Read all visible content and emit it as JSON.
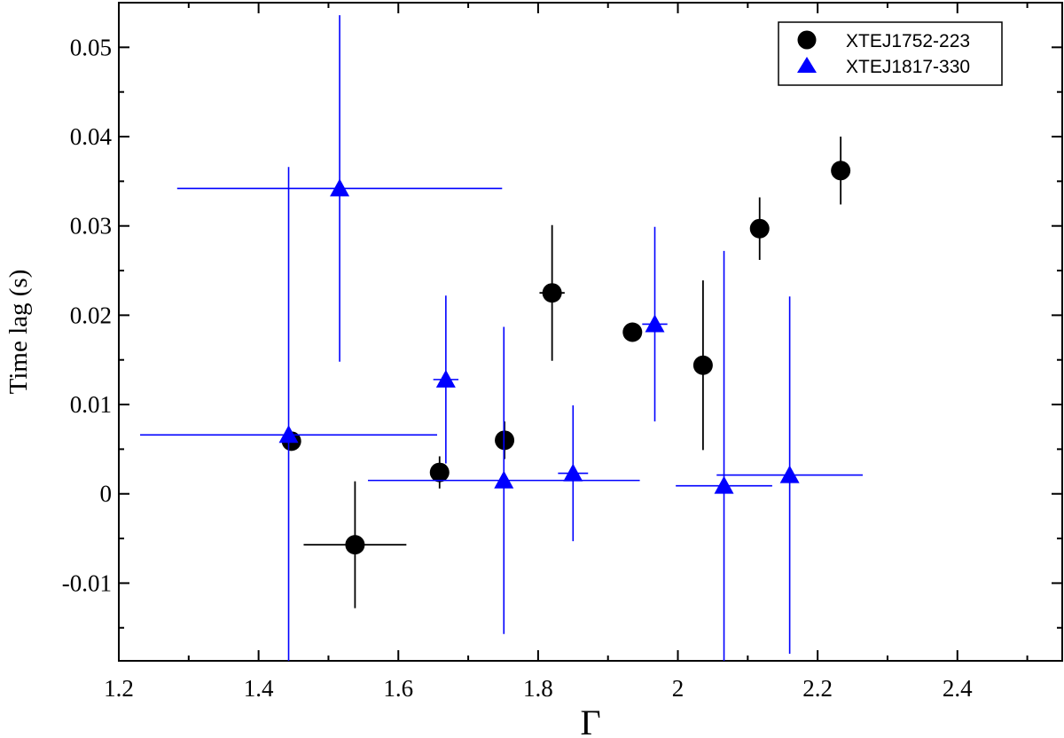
{
  "chart_data": {
    "type": "scatter",
    "xlabel": "Γ",
    "ylabel": "Time lag (s)",
    "xlim": [
      1.2,
      2.55
    ],
    "ylim": [
      -0.0187,
      0.055
    ],
    "xticks": [
      1.2,
      1.4,
      1.6,
      1.8,
      2.0,
      2.2,
      2.4
    ],
    "xtick_labels": [
      "1.2",
      "1.4",
      "1.6",
      "1.8",
      "2",
      "2.2",
      "2.4"
    ],
    "yticks": [
      -0.01,
      0,
      0.01,
      0.02,
      0.03,
      0.04,
      0.05
    ],
    "ytick_labels": [
      "-0.01",
      "0",
      "0.01",
      "0.02",
      "0.03",
      "0.04",
      "0.05"
    ],
    "legend_position": "top-right",
    "grid": false,
    "series": [
      {
        "name": "XTEJ1752-223",
        "marker": "circle",
        "color": "#000000",
        "points": [
          {
            "x": 1.447,
            "y": 0.0059,
            "xerr": [
              0.005,
              0.005
            ],
            "yerr": [
              0.0004,
              0.0004
            ]
          },
          {
            "x": 1.538,
            "y": -0.0057,
            "xerr": [
              0.0735,
              0.0735
            ],
            "yerr": [
              0.0071,
              0.0071
            ]
          },
          {
            "x": 1.659,
            "y": 0.0024,
            "xerr": [
              0.005,
              0.005
            ],
            "yerr": [
              0.0018,
              0.0018
            ]
          },
          {
            "x": 1.752,
            "y": 0.006,
            "xerr": [
              0.005,
              0.005
            ],
            "yerr": [
              0.0021,
              0.0021
            ]
          },
          {
            "x": 1.82,
            "y": 0.0225,
            "xerr": [
              0.018,
              0.018
            ],
            "yerr": [
              0.0076,
              0.0076
            ]
          },
          {
            "x": 1.935,
            "y": 0.0181,
            "xerr": [
              0.005,
              0.005
            ],
            "yerr": [
              0.0003,
              0.0003
            ]
          },
          {
            "x": 2.036,
            "y": 0.0144,
            "xerr": [
              0.01,
              0.01
            ],
            "yerr": [
              0.0095,
              0.0095
            ]
          },
          {
            "x": 2.117,
            "y": 0.0297,
            "xerr": [
              0.005,
              0.005
            ],
            "yerr": [
              0.0035,
              0.0035
            ]
          },
          {
            "x": 2.233,
            "y": 0.0362,
            "xerr": [
              0.005,
              0.005
            ],
            "yerr": [
              0.0038,
              0.0038
            ]
          }
        ]
      },
      {
        "name": "XTEJ1817-330",
        "marker": "triangle",
        "color": "#0000ff",
        "points": [
          {
            "x": 1.443,
            "y": 0.0066,
            "xerr": [
              0.2125,
              0.2125
            ],
            "yerr": [
              0.03,
              0.03
            ]
          },
          {
            "x": 1.516,
            "y": 0.0342,
            "xerr": [
              0.2325,
              0.2325
            ],
            "yerr": [
              0.0194,
              0.0194
            ]
          },
          {
            "x": 1.668,
            "y": 0.0128,
            "xerr": [
              0.018,
              0.018
            ],
            "yerr": [
              0.0094,
              0.0094
            ]
          },
          {
            "x": 1.751,
            "y": 0.0015,
            "xerr": [
              0.1945,
              0.1945
            ],
            "yerr": [
              0.0172,
              0.0172
            ]
          },
          {
            "x": 1.85,
            "y": 0.0023,
            "xerr": [
              0.0215,
              0.0215
            ],
            "yerr": [
              0.0076,
              0.0076
            ]
          },
          {
            "x": 1.967,
            "y": 0.019,
            "xerr": [
              0.018,
              0.018
            ],
            "yerr": [
              0.0109,
              0.0109
            ]
          },
          {
            "x": 2.066,
            "y": 0.0009,
            "xerr": [
              0.069,
              0.069
            ],
            "yerr": [
              0.0263,
              0.0263
            ]
          },
          {
            "x": 2.16,
            "y": 0.0021,
            "xerr": [
              0.1045,
              0.1045
            ],
            "yerr": [
              0.02,
              0.02
            ]
          }
        ]
      }
    ]
  }
}
